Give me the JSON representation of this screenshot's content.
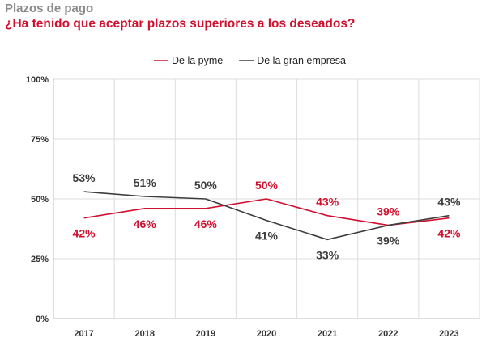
{
  "header": {
    "kicker": "Plazos de pago",
    "question": "¿Ha tenido que aceptar plazos superiores a los deseados?"
  },
  "colors": {
    "pyme": "#d0102f",
    "gran_empresa": "#3d3d3d",
    "grid": "#dddddd",
    "axis": "#bdbdbd"
  },
  "chart_data": {
    "type": "line",
    "title": "",
    "xlabel": "",
    "ylabel": "",
    "categories": [
      "2017",
      "2018",
      "2019",
      "2020",
      "2021",
      "2022",
      "2023"
    ],
    "ylim": [
      0,
      100
    ],
    "yticks": [
      0,
      25,
      50,
      75,
      100
    ],
    "ytick_labels": [
      "0%",
      "25%",
      "50%",
      "75%",
      "100%"
    ],
    "grid": true,
    "legend_position": "top-right",
    "series": [
      {
        "name": "De la pyme",
        "color_key": "pyme",
        "values": [
          42,
          46,
          46,
          50,
          43,
          39,
          42
        ],
        "labels": [
          "42%",
          "46%",
          "46%",
          "50%",
          "43%",
          "39%",
          "42%"
        ],
        "label_side": [
          "below",
          "below",
          "below",
          "above",
          "above",
          "above",
          "below"
        ]
      },
      {
        "name": "De la gran empresa",
        "color_key": "gran_empresa",
        "values": [
          53,
          51,
          50,
          41,
          33,
          39,
          43
        ],
        "labels": [
          "53%",
          "51%",
          "50%",
          "41%",
          "33%",
          "39%",
          "43%"
        ],
        "label_side": [
          "above",
          "above",
          "above",
          "below",
          "below",
          "below",
          "above"
        ]
      }
    ]
  }
}
